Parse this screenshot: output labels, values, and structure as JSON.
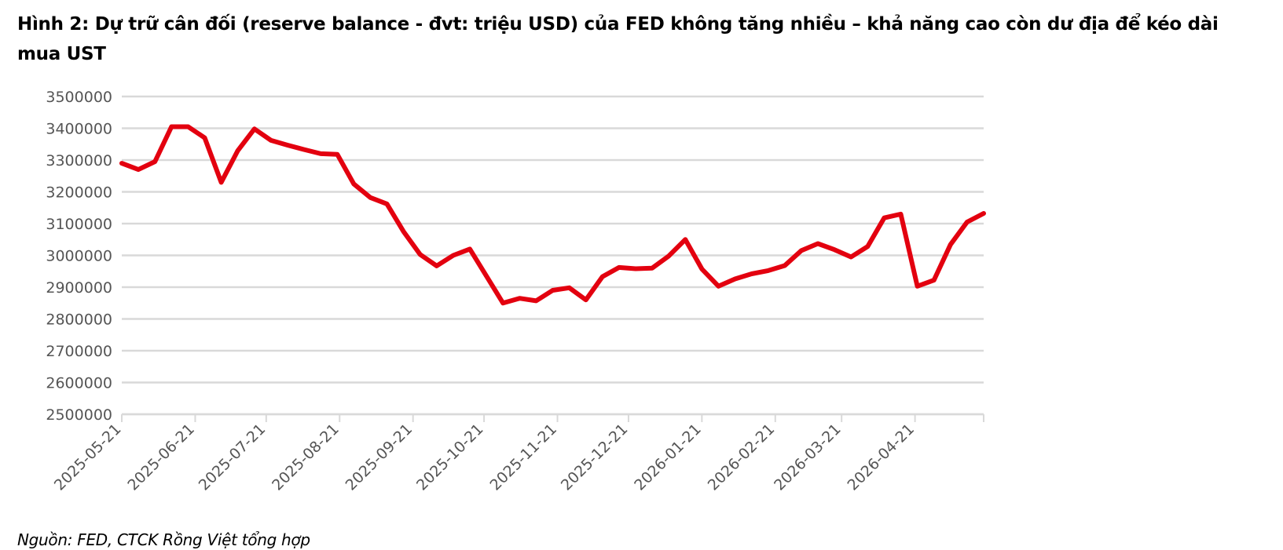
{
  "title": "Hình 2: Dự trữ cân đối (reserve balance - đvt: triệu USD) của FED không tăng nhiều – khả năng cao còn dư địa để kéo dài mua UST",
  "source": "Nguồn: FED, CTCK Rồng Việt tổng hợp",
  "colors": {
    "line": "#e3000f",
    "grid": "#d9d9d9",
    "tick_text": "#555555"
  },
  "chart_data": {
    "type": "line",
    "title": "",
    "xlabel": "",
    "ylabel": "",
    "ylim": [
      2500000,
      3500000
    ],
    "yticks": [
      3500000,
      3400000,
      3300000,
      3200000,
      3100000,
      3000000,
      2900000,
      2800000,
      2700000,
      2600000,
      2500000
    ],
    "xtick_labels": [
      "2025-05-21",
      "2025-06-21",
      "2025-07-21",
      "2025-08-21",
      "2025-09-21",
      "2025-10-21",
      "2025-11-21",
      "2025-12-21",
      "2026-01-21",
      "2026-02-21",
      "2026-03-21",
      "2026-04-21"
    ],
    "grid": true,
    "legend": "none",
    "series": [
      {
        "x": [
          "2025-05-21",
          "2025-05-28",
          "2025-06-04",
          "2025-06-11",
          "2025-06-18",
          "2025-06-25",
          "2025-07-02",
          "2025-07-09",
          "2025-07-16",
          "2025-07-23",
          "2025-07-30",
          "2025-08-06",
          "2025-08-13",
          "2025-08-20",
          "2025-08-27",
          "2025-09-03",
          "2025-09-10",
          "2025-09-17",
          "2025-09-24",
          "2025-10-01",
          "2025-10-08",
          "2025-10-15",
          "2025-10-22",
          "2025-10-29",
          "2025-11-05",
          "2025-11-12",
          "2025-11-19",
          "2025-11-26",
          "2025-12-03",
          "2025-12-10",
          "2025-12-17",
          "2025-12-24",
          "2025-12-31",
          "2026-01-07",
          "2026-01-14",
          "2026-01-21",
          "2026-01-28",
          "2026-02-04",
          "2026-02-11",
          "2026-02-18",
          "2026-02-25",
          "2026-03-04",
          "2026-03-11",
          "2026-03-18",
          "2026-03-25",
          "2026-04-01",
          "2026-04-08",
          "2026-04-15",
          "2026-04-22",
          "2026-04-29",
          "2026-05-06",
          "2026-05-13",
          "2026-05-20"
        ],
        "values": [
          3290000,
          3270000,
          3295000,
          3405000,
          3405000,
          3370000,
          3230000,
          3330000,
          3398000,
          3362000,
          3347000,
          3333000,
          3320000,
          3318000,
          3225000,
          3182000,
          3162000,
          3075000,
          3003000,
          2967000,
          3000000,
          3020000,
          2935000,
          2850000,
          2865000,
          2857000,
          2890000,
          2898000,
          2860000,
          2933000,
          2962000,
          2958000,
          2960000,
          2998000,
          3050000,
          2957000,
          2903000,
          2926000,
          2942000,
          2952000,
          2968000,
          3015000,
          3037000,
          3018000,
          2995000,
          3028000,
          3118000,
          3130000,
          2903000,
          2922000,
          3034000,
          3105000,
          3132000
        ]
      }
    ]
  }
}
